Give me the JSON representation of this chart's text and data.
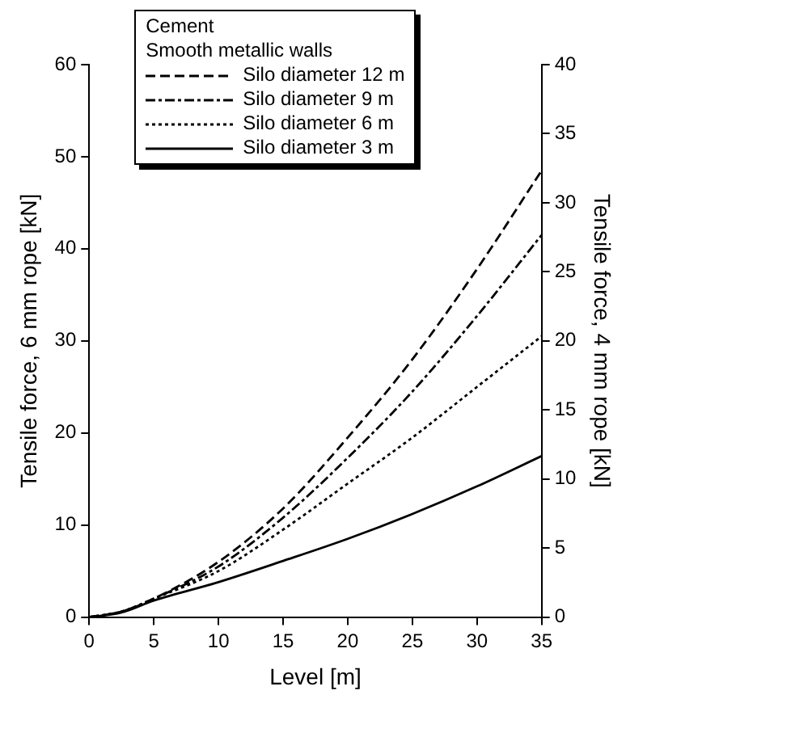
{
  "chart_data": {
    "type": "line",
    "xlabel": "Level [m]",
    "ylabel": "Tensile force, 6 mm rope [kN]",
    "y2label": "Tensile force, 4 mm rope [kN]",
    "legend_title": "Cement",
    "annotations": [
      "Smooth metallic walls"
    ],
    "x": [
      0,
      2.5,
      5,
      10,
      15,
      20,
      25,
      30,
      35
    ],
    "xlim": [
      0,
      35
    ],
    "xticks": [
      0,
      5,
      10,
      15,
      20,
      25,
      30,
      35
    ],
    "ylim": [
      0,
      60
    ],
    "yticks": [
      0,
      10,
      20,
      30,
      40,
      50,
      60
    ],
    "y2lim": [
      0,
      40
    ],
    "y2ticks": [
      0,
      5,
      10,
      15,
      20,
      25,
      30,
      35,
      40
    ],
    "grid": false,
    "legend": "top left",
    "marker": "none",
    "series": [
      {
        "name": "Silo diameter 12 m",
        "color": "#000000",
        "line_style": "dashed",
        "values": [
          0,
          0.6,
          2,
          6,
          11.8,
          19.5,
          28,
          37.8,
          48.5
        ]
      },
      {
        "name": "Silo diameter 9 m",
        "color": "#000000",
        "line_style": "dashdot",
        "values": [
          0,
          0.6,
          2,
          5.5,
          10.8,
          17.3,
          24.5,
          32.7,
          41.5
        ]
      },
      {
        "name": "Silo diameter 6 m",
        "color": "#000000",
        "line_style": "dotted",
        "values": [
          0,
          0.6,
          2,
          5,
          9.5,
          14.5,
          19.5,
          25,
          30.5
        ]
      },
      {
        "name": "Silo diameter 3 m",
        "color": "#000000",
        "line_style": "solid",
        "values": [
          0,
          0.5,
          1.8,
          3.8,
          6.1,
          8.5,
          11.2,
          14.2,
          17.5
        ]
      }
    ]
  }
}
